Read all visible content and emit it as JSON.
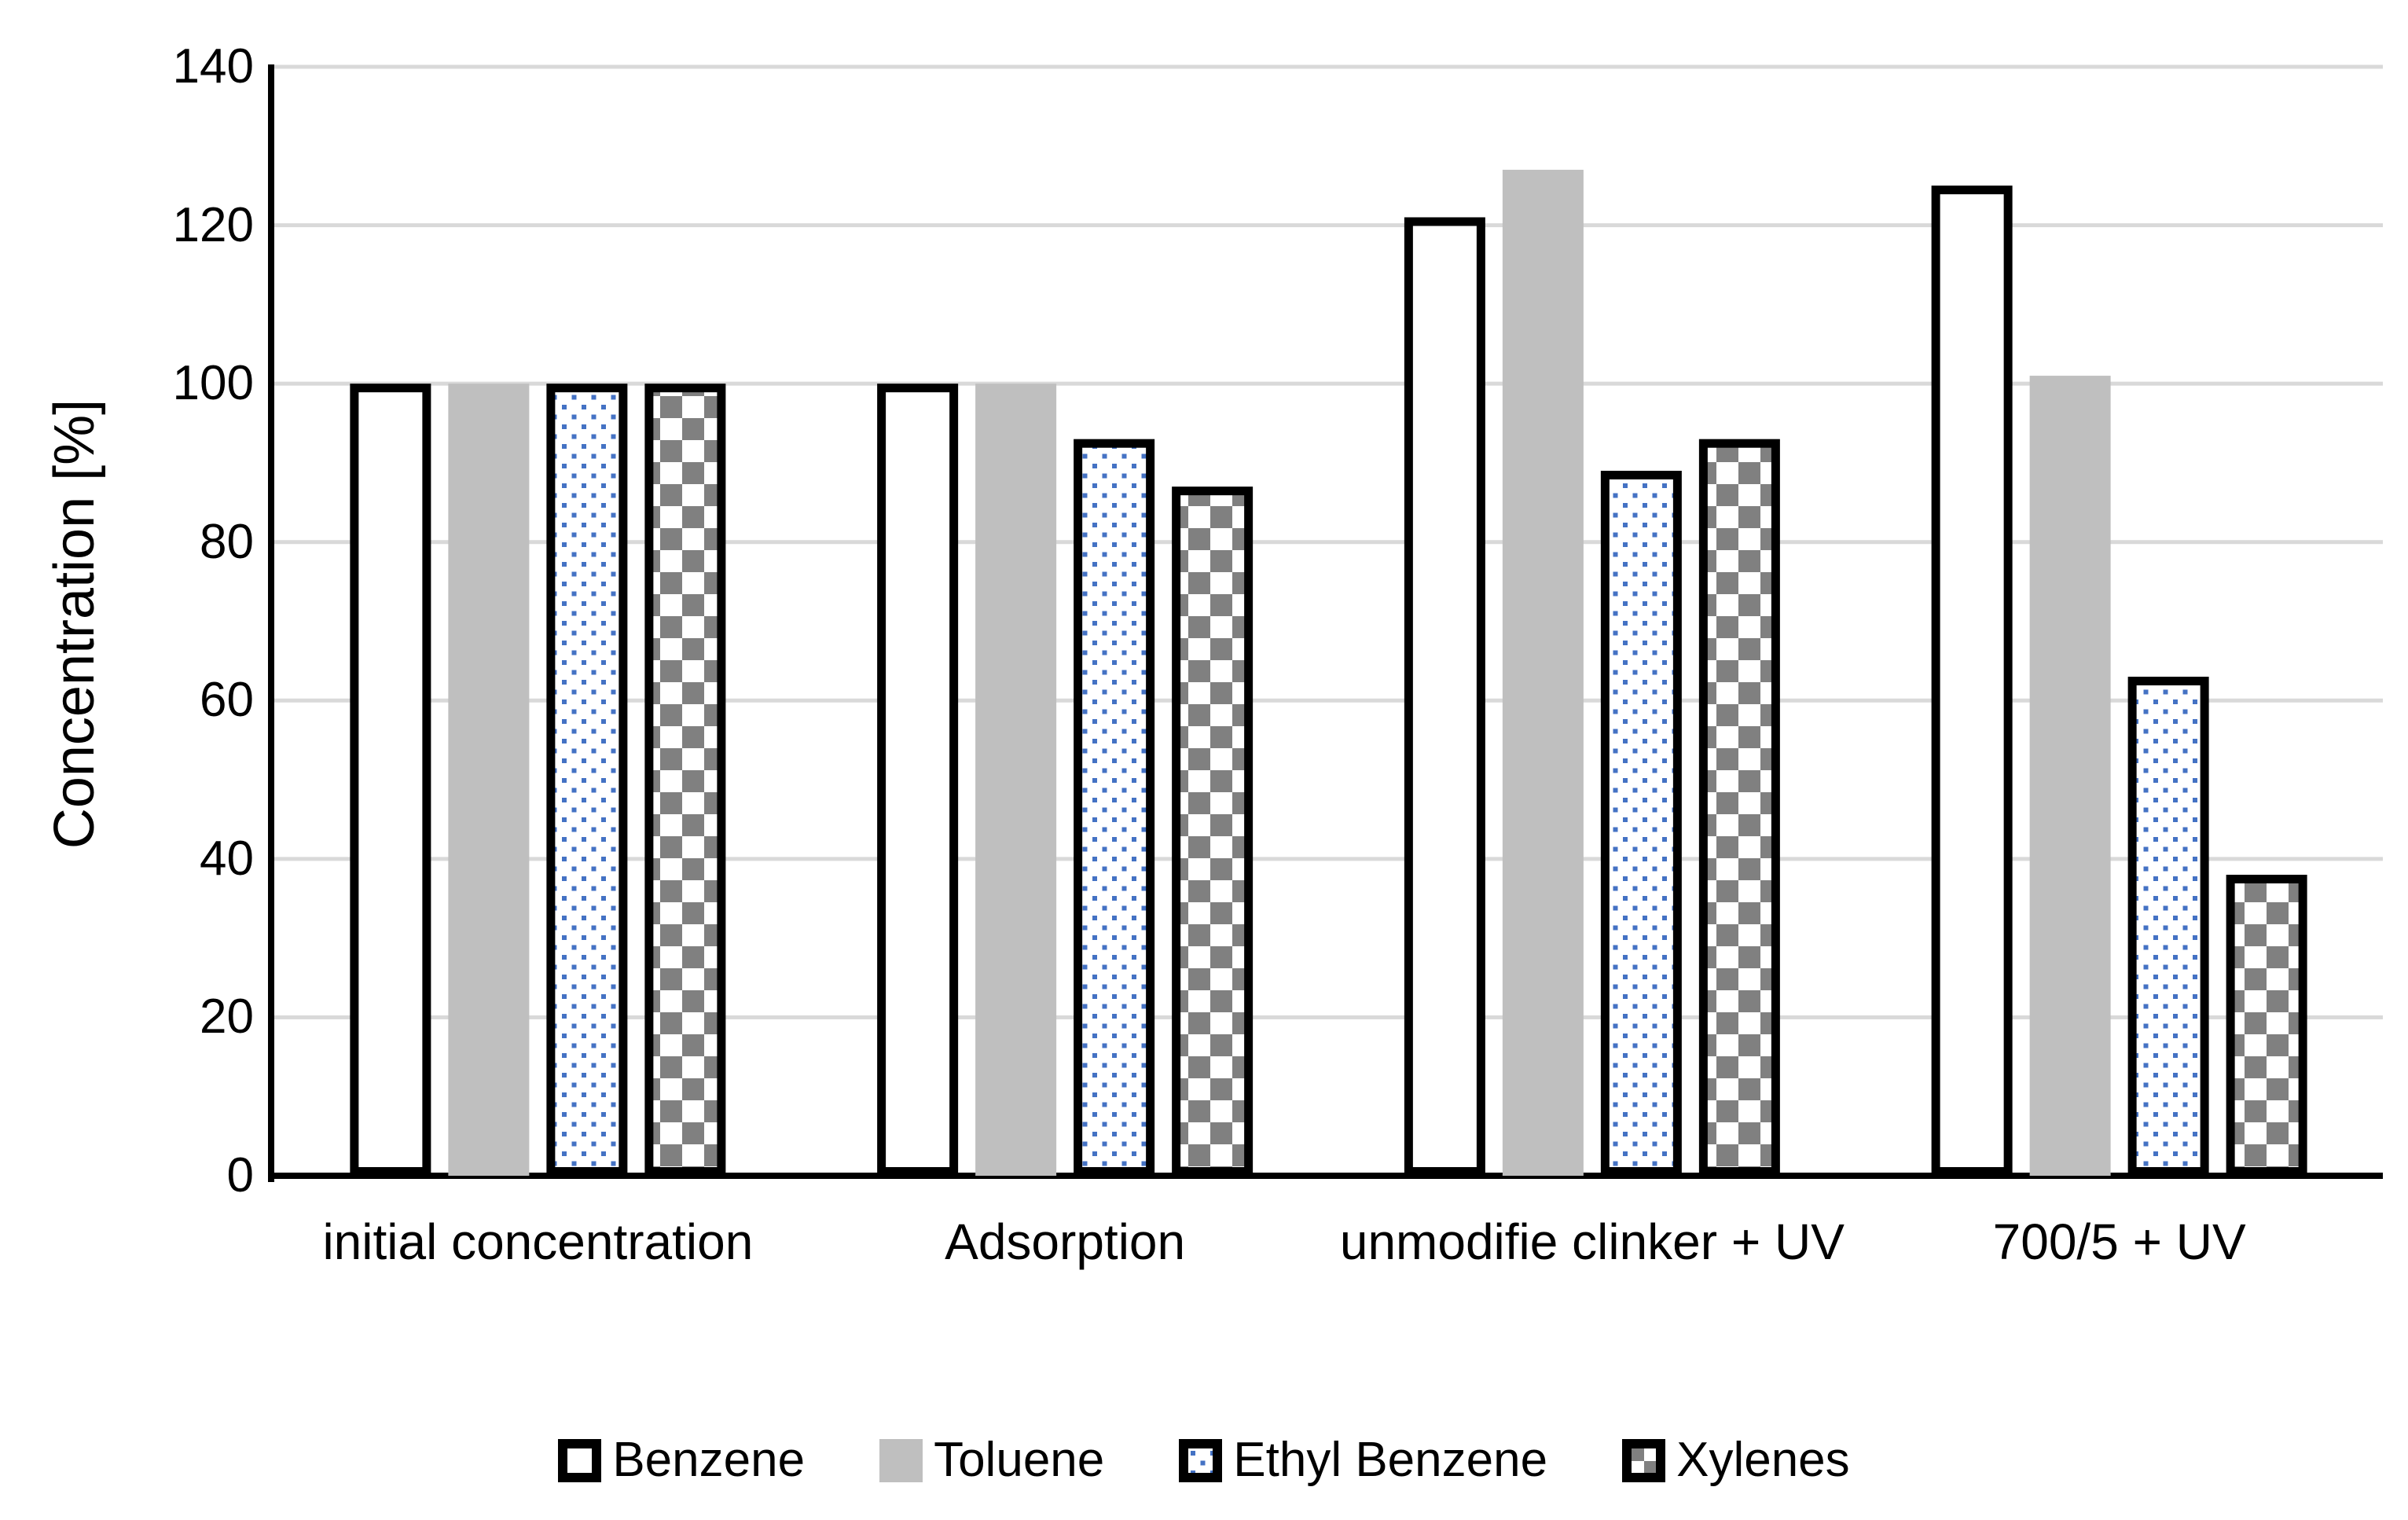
{
  "chart_data": {
    "type": "bar",
    "title": "",
    "xlabel": "",
    "ylabel": "Concentration [%]",
    "ylim": [
      0,
      140
    ],
    "ytick_step": 20,
    "yticks": [
      0,
      20,
      40,
      60,
      80,
      100,
      120,
      140
    ],
    "grid": true,
    "legend_position": "bottom-center",
    "categories": [
      "initial concentration",
      "Adsorption",
      "unmodifie clinker + UV",
      "700/5 + UV"
    ],
    "series": [
      {
        "name": "Benzene",
        "pattern": "plain-white",
        "border": true,
        "values": [
          100,
          100,
          121,
          125
        ]
      },
      {
        "name": "Toluene",
        "pattern": "solid-gray",
        "border": false,
        "values": [
          100,
          100,
          127,
          101
        ]
      },
      {
        "name": "Ethyl Benzene",
        "pattern": "blue-dots",
        "border": true,
        "values": [
          100,
          93,
          89,
          63
        ]
      },
      {
        "name": "Xylenes",
        "pattern": "gray-checker",
        "border": true,
        "values": [
          100,
          87,
          93,
          38
        ]
      }
    ],
    "colors": {
      "dot_blue": "#4472C4",
      "checker_gray": "#808080",
      "solid_gray": "#BFBFBF",
      "gridline": "#D9D9D9",
      "axis": "#000000",
      "bar_fill_white": "#FFFFFF",
      "text": "#000000"
    }
  }
}
